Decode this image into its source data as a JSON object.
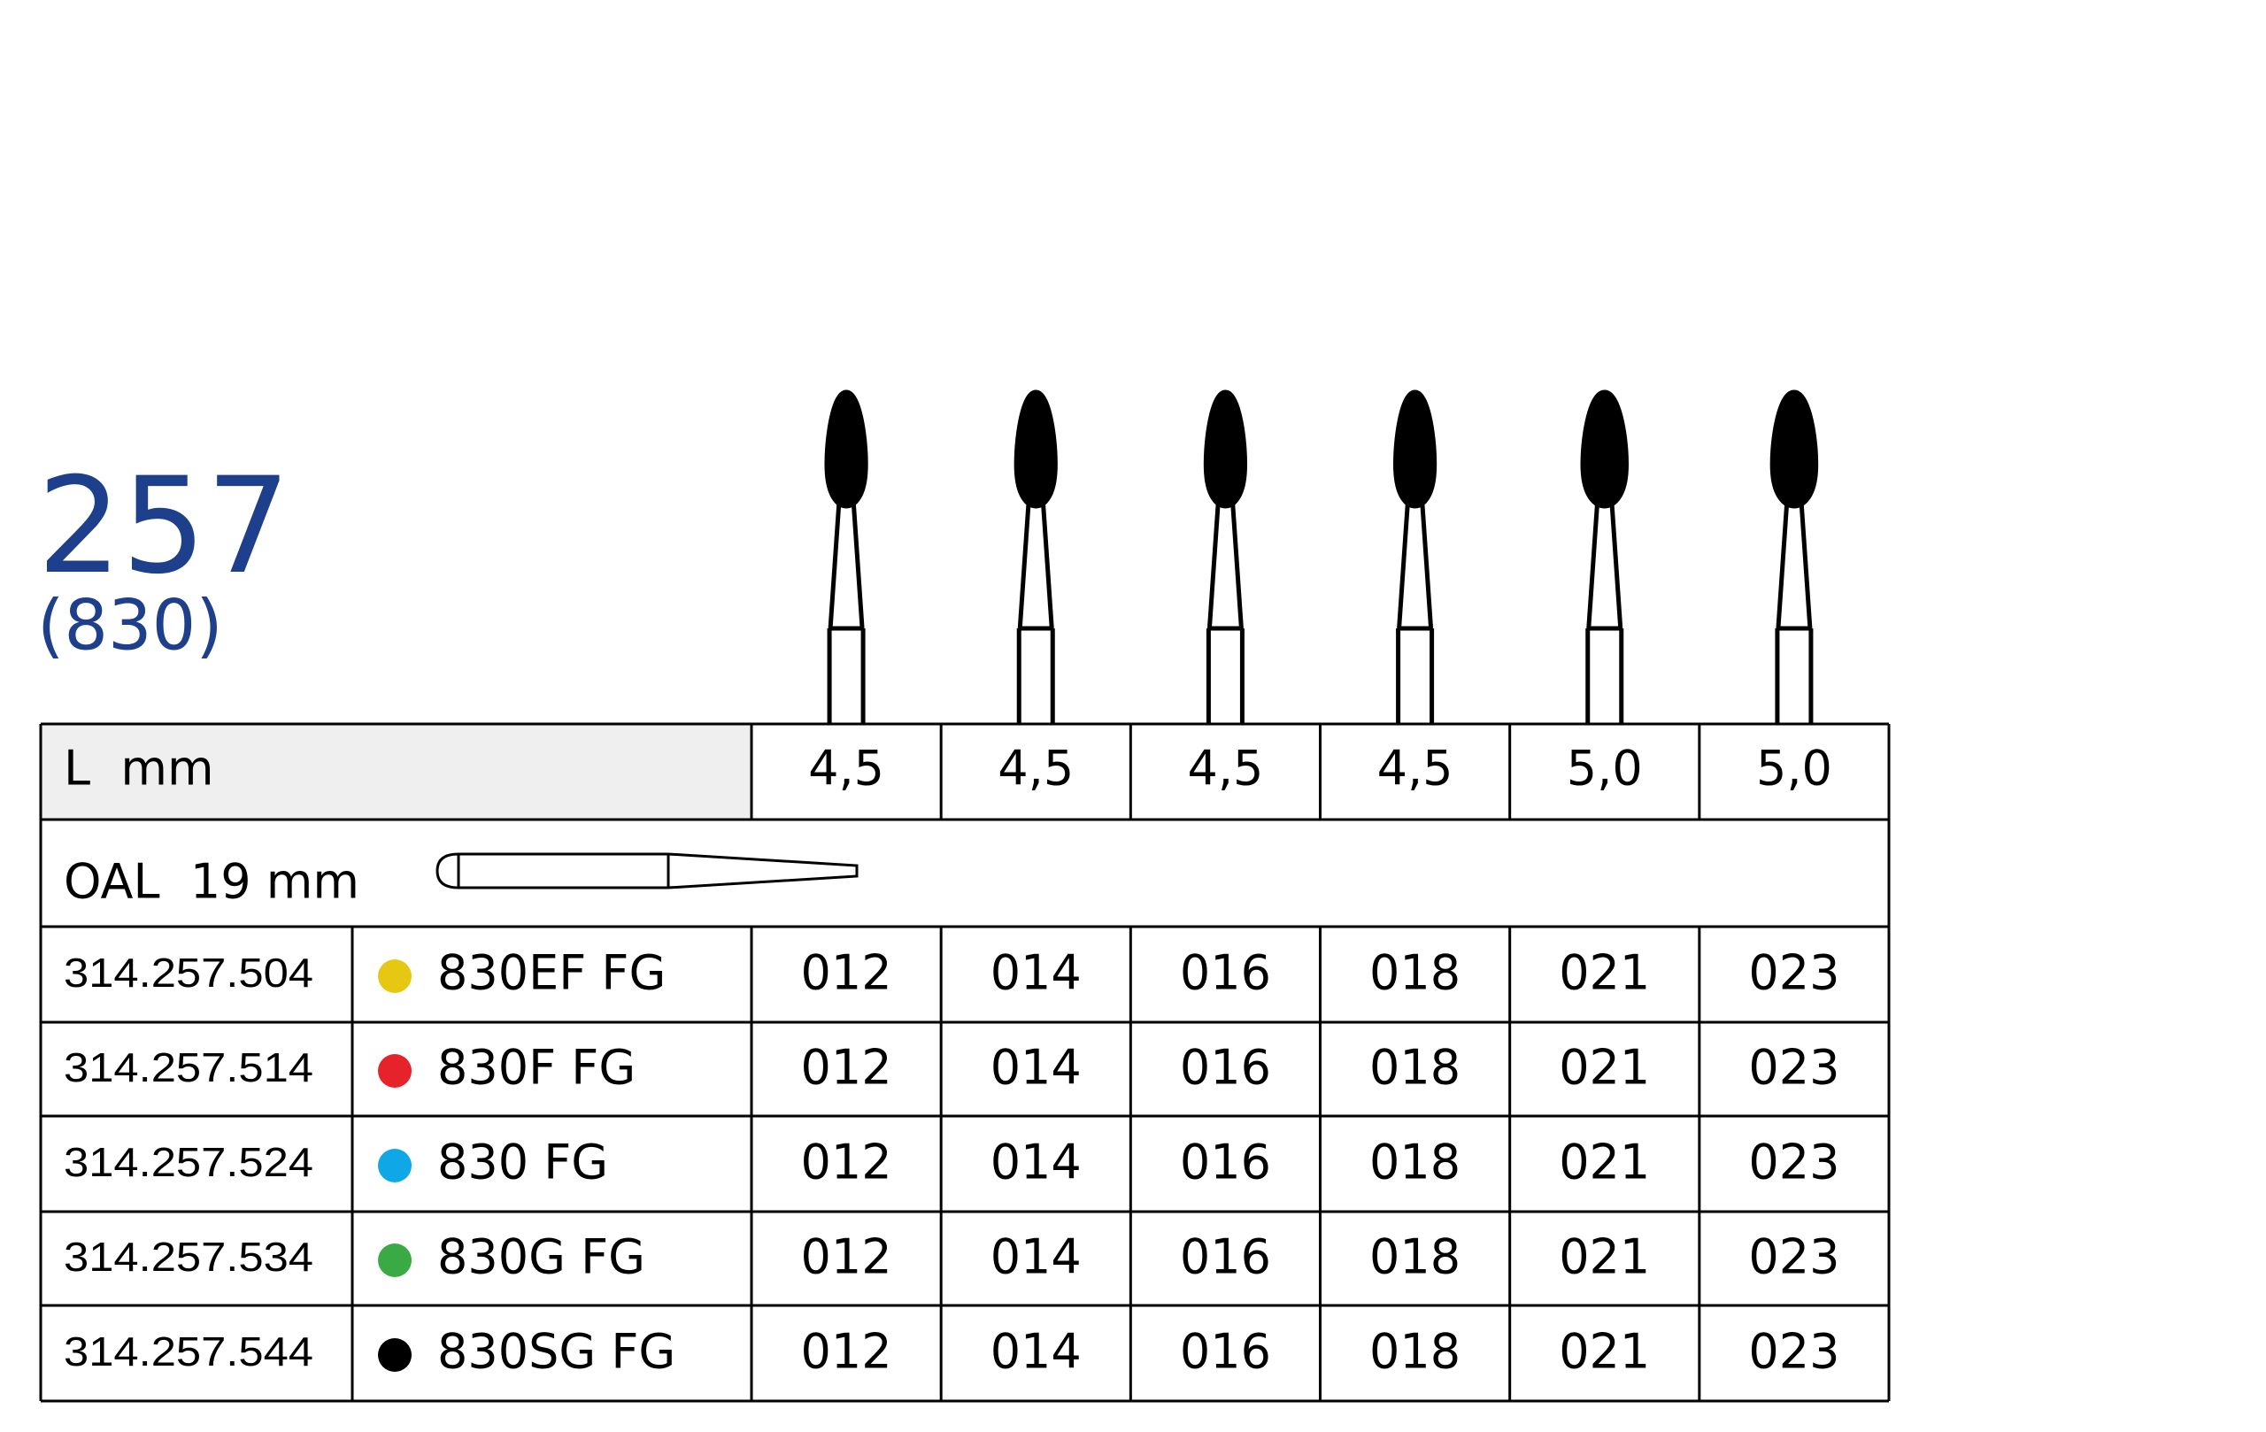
{
  "header": {
    "title": "257",
    "subtitle": "(830)"
  },
  "table": {
    "length_label": "L  mm",
    "lengths": [
      "4,5",
      "4,5",
      "4,5",
      "4,5",
      "5,0",
      "5,0"
    ],
    "oal_label": "OAL  19 mm",
    "rows": [
      {
        "code": "314.257.504",
        "color": "#e6c812",
        "name": "830EF FG",
        "sizes": [
          "012",
          "014",
          "016",
          "018",
          "021",
          "023"
        ]
      },
      {
        "code": "314.257.514",
        "color": "#e6222a",
        "name": "830F FG",
        "sizes": [
          "012",
          "014",
          "016",
          "018",
          "021",
          "023"
        ]
      },
      {
        "code": "314.257.524",
        "color": "#10a7e6",
        "name": "830 FG",
        "sizes": [
          "012",
          "014",
          "016",
          "018",
          "021",
          "023"
        ]
      },
      {
        "code": "314.257.534",
        "color": "#3aaa45",
        "name": "830G FG",
        "sizes": [
          "012",
          "014",
          "016",
          "018",
          "021",
          "023"
        ]
      },
      {
        "code": "314.257.544",
        "color": "#000000",
        "name": "830SG FG",
        "sizes": [
          "012",
          "014",
          "016",
          "018",
          "021",
          "023"
        ]
      }
    ]
  }
}
